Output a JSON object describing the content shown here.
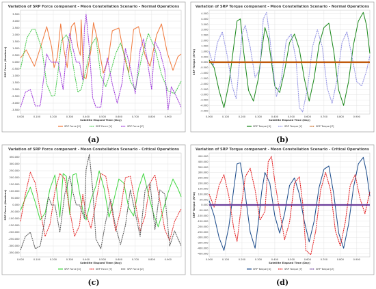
{
  "chart_data": [
    {
      "type": "line",
      "title": "Variation of SRP Force component - Moon Constellation Scenario - Normal Operations",
      "xlabel": "Satellite Elapsed Time (Day)",
      "ylabel": "SRP Force (Newtons)",
      "caption": "(a)",
      "xlim": [
        0,
        0.98
      ],
      "ylim": [
        -3.8,
        3.8
      ],
      "xticks": [
        "0.000",
        "0.100",
        "0.200",
        "0.300",
        "0.400",
        "0.500",
        "0.600",
        "0.700",
        "0.800",
        "0.900"
      ],
      "yticks": [
        "3.500",
        "3.000",
        "2.500",
        "2.000",
        "1.500",
        "1.000",
        "0.500",
        "0.000",
        "-0.500",
        "-1.000",
        "-1.500",
        "-2.000",
        "-2.500",
        "-3.000",
        "-3.500"
      ],
      "yticks_values": [
        3.5,
        3.0,
        2.5,
        2.0,
        1.5,
        1.0,
        0.5,
        0.0,
        -0.5,
        -1.0,
        -1.5,
        -2.0,
        -2.5,
        -3.0,
        -3.5
      ],
      "series": [
        {
          "name": "SRP Force [X]",
          "color": "#f07b3f",
          "x": [
            0.0,
            0.035,
            0.085,
            0.125,
            0.16,
            0.19,
            0.205,
            0.225,
            0.245,
            0.265,
            0.285,
            0.31,
            0.33,
            0.35,
            0.365,
            0.37,
            0.385,
            0.4,
            0.43,
            0.445,
            0.47,
            0.505,
            0.535,
            0.56,
            0.6,
            0.635,
            0.66,
            0.69,
            0.72,
            0.76,
            0.79,
            0.83,
            0.86,
            0.895,
            0.93,
            0.96,
            0.98
          ],
          "y": [
            0.3,
            0.9,
            -0.3,
            1.2,
            2.6,
            1.1,
            -0.4,
            0.4,
            2.8,
            0.9,
            -0.4,
            2.6,
            2.9,
            1.1,
            0.5,
            3.1,
            -1.1,
            -1.2,
            0.9,
            2.9,
            1.6,
            -0.8,
            0.2,
            2.3,
            2.5,
            0.3,
            -0.8,
            2.4,
            2.6,
            0.5,
            -0.3,
            2.0,
            2.8,
            0.7,
            -0.6,
            0.4,
            0.6
          ]
        },
        {
          "name": "SRP Force [Y]",
          "color": "#44c94a",
          "x": [
            0.0,
            0.04,
            0.07,
            0.09,
            0.13,
            0.16,
            0.19,
            0.21,
            0.23,
            0.25,
            0.28,
            0.3,
            0.33,
            0.35,
            0.37,
            0.4,
            0.43,
            0.46,
            0.49,
            0.52,
            0.55,
            0.58,
            0.61,
            0.64,
            0.67,
            0.7,
            0.74,
            0.78,
            0.82,
            0.86,
            0.9,
            0.94,
            0.98
          ],
          "y": [
            -0.5,
            1.8,
            2.4,
            2.4,
            1.0,
            -1.6,
            -2.5,
            -2.4,
            -0.6,
            1.6,
            2.0,
            1.4,
            -0.9,
            -2.2,
            -2.0,
            -0.5,
            1.2,
            1.8,
            -1.0,
            -1.8,
            -0.7,
            0.6,
            1.4,
            0.3,
            -1.4,
            -2.0,
            0.4,
            2.1,
            1.0,
            -0.9,
            -2.1,
            -2.3,
            -1.4
          ]
        },
        {
          "name": "SRP Force [Z]",
          "color": "#9b34d9",
          "x": [
            0.0,
            0.03,
            0.06,
            0.09,
            0.12,
            0.14,
            0.16,
            0.175,
            0.19,
            0.21,
            0.23,
            0.26,
            0.28,
            0.3,
            0.32,
            0.34,
            0.36,
            0.38,
            0.39,
            0.4,
            0.42,
            0.44,
            0.46,
            0.49,
            0.51,
            0.53,
            0.56,
            0.59,
            0.62,
            0.64,
            0.67,
            0.7,
            0.73,
            0.75,
            0.77,
            0.8,
            0.82,
            0.85,
            0.88,
            0.9,
            0.92,
            0.95,
            0.98
          ],
          "y": [
            -3.3,
            -2.2,
            -2.0,
            -3.2,
            -3.2,
            -1.3,
            0.6,
            0.2,
            0.0,
            0.0,
            0.0,
            -2.0,
            0.7,
            2.1,
            1.0,
            0.0,
            0.0,
            -1.3,
            2.5,
            3.5,
            1.0,
            -2.6,
            -3.3,
            -3.3,
            -1.0,
            0.3,
            -1.6,
            -3.0,
            -1.5,
            1.0,
            -0.4,
            -2.3,
            0.9,
            1.7,
            0.4,
            -2.0,
            1.5,
            0.8,
            -0.6,
            -3.5,
            -1.8,
            -2.5,
            -3.3
          ]
        }
      ]
    },
    {
      "type": "line",
      "title": "Variation of SRP Torque component - Moon Constellation Scenario - Normal Operations",
      "xlabel": "Satellite Elapsed Time (Day)",
      "ylabel": "SRP Torque (N*m)",
      "caption": "(b)",
      "xlim": [
        0,
        0.98
      ],
      "ylim": [
        -4.8,
        4.8
      ],
      "xticks": [
        "0.000",
        "0.100",
        "0.200",
        "0.300",
        "0.400",
        "0.500",
        "0.600",
        "0.700",
        "0.800",
        "0.900"
      ],
      "yticks": [
        "4.500",
        "4.000",
        "3.500",
        "3.000",
        "2.500",
        "2.000",
        "1.500",
        "1.000",
        "0.500",
        "0.000",
        "-0.500",
        "-1.000",
        "-1.500",
        "-2.000",
        "-2.500",
        "-3.000",
        "-3.500",
        "-4.000",
        "-4.500"
      ],
      "yticks_values": [
        4.5,
        4.0,
        3.5,
        3.0,
        2.5,
        2.0,
        1.5,
        1.0,
        0.5,
        0.0,
        -0.5,
        -1.0,
        -1.5,
        -2.0,
        -2.5,
        -3.0,
        -3.5,
        -4.0,
        -4.5
      ],
      "series": [
        {
          "name": "SRP Torque [X]",
          "color": "#1e8a1e",
          "x": [
            0.0,
            0.03,
            0.06,
            0.09,
            0.12,
            0.15,
            0.17,
            0.19,
            0.21,
            0.24,
            0.27,
            0.3,
            0.32,
            0.34,
            0.36,
            0.38,
            0.4,
            0.43,
            0.46,
            0.49,
            0.52,
            0.55,
            0.58,
            0.61,
            0.64,
            0.67,
            0.7,
            0.73,
            0.76,
            0.79,
            0.82,
            0.85,
            0.88,
            0.91,
            0.94,
            0.96,
            0.98
          ],
          "y": [
            0.2,
            -0.5,
            -2.6,
            -4.2,
            -2.0,
            1.5,
            3.8,
            4.0,
            1.0,
            -2.6,
            -3.6,
            -1.5,
            1.0,
            3.2,
            2.2,
            0.0,
            -2.2,
            -2.8,
            -0.8,
            1.8,
            2.6,
            1.2,
            -1.5,
            -3.6,
            -1.5,
            1.6,
            3.2,
            3.6,
            1.0,
            -2.6,
            -4.0,
            -1.8,
            1.6,
            3.8,
            4.6,
            3.4,
            0.8
          ]
        },
        {
          "name": "SRP Torque [Y]",
          "color": "#8f8fe3",
          "x": [
            0.0,
            0.025,
            0.05,
            0.08,
            0.11,
            0.14,
            0.165,
            0.18,
            0.2,
            0.22,
            0.25,
            0.28,
            0.31,
            0.33,
            0.35,
            0.37,
            0.39,
            0.41,
            0.44,
            0.47,
            0.5,
            0.53,
            0.55,
            0.57,
            0.6,
            0.63,
            0.66,
            0.69,
            0.72,
            0.75,
            0.78,
            0.81,
            0.84,
            0.87,
            0.9,
            0.93,
            0.96,
            0.98
          ],
          "y": [
            1.0,
            -0.3,
            1.8,
            2.8,
            0.6,
            -2.2,
            -3.4,
            -0.8,
            2.6,
            3.4,
            1.4,
            -1.4,
            -0.6,
            4.0,
            4.6,
            2.2,
            -0.6,
            -3.2,
            -1.6,
            2.0,
            2.6,
            0.2,
            -4.2,
            -4.6,
            -2.4,
            1.4,
            3.0,
            1.4,
            -2.4,
            -3.8,
            -1.6,
            1.8,
            2.8,
            0.6,
            -1.8,
            -2.2,
            -0.8,
            0.6
          ]
        },
        {
          "name": "SRP Torque [Z]",
          "color": "#c05a0c",
          "x": [
            0.0,
            0.98
          ],
          "y": [
            0.0,
            0.0
          ]
        }
      ]
    },
    {
      "type": "line",
      "title": "Variation of SRP Force component - Moon Constellation Scenario - Critical Operations",
      "xlabel": "Satellite Elapsed Time (Day)",
      "ylabel": "SRP Force (Newtons)",
      "caption": "(c)",
      "xlim": [
        0,
        0.98
      ],
      "ylim": [
        -380,
        380
      ],
      "xticks": [
        "0.000",
        "0.100",
        "0.200",
        "0.300",
        "0.400",
        "0.500",
        "0.600",
        "0.700",
        "0.800",
        "0.900"
      ],
      "yticks": [
        "350.000",
        "300.000",
        "250.000",
        "200.000",
        "150.000",
        "100.000",
        "50.000",
        "0.000",
        "-50.000",
        "-100.000",
        "-150.000",
        "-200.000",
        "-250.000",
        "-300.000",
        "-350.000"
      ],
      "yticks_values": [
        350,
        300,
        250,
        200,
        150,
        100,
        50,
        0,
        -50,
        -100,
        -150,
        -200,
        -250,
        -300,
        -350
      ],
      "series": [
        {
          "name": "SRP Force [X]",
          "color": "#46d846",
          "x": [
            0.0,
            0.03,
            0.06,
            0.09,
            0.12,
            0.15,
            0.18,
            0.21,
            0.24,
            0.26,
            0.28,
            0.3,
            0.32,
            0.34,
            0.36,
            0.38,
            0.4,
            0.43,
            0.46,
            0.48,
            0.51,
            0.54,
            0.57,
            0.6,
            0.63,
            0.66,
            0.69,
            0.72,
            0.75,
            0.78,
            0.81,
            0.84,
            0.87,
            0.9,
            0.93,
            0.96,
            0.98
          ],
          "y": [
            -40,
            50,
            130,
            20,
            -110,
            -60,
            120,
            220,
            -90,
            230,
            210,
            -70,
            220,
            230,
            90,
            -40,
            -110,
            40,
            140,
            250,
            120,
            -90,
            40,
            190,
            160,
            -20,
            -80,
            120,
            230,
            80,
            -60,
            -160,
            -40,
            90,
            190,
            120,
            60
          ]
        },
        {
          "name": "SRP Force [Y]",
          "color": "#e52b2b",
          "x": [
            0.0,
            0.03,
            0.06,
            0.09,
            0.12,
            0.15,
            0.18,
            0.21,
            0.24,
            0.27,
            0.3,
            0.33,
            0.36,
            0.38,
            0.4,
            0.43,
            0.46,
            0.49,
            0.52,
            0.55,
            0.58,
            0.61,
            0.64,
            0.67,
            0.7,
            0.73,
            0.76,
            0.79,
            0.82,
            0.85,
            0.88,
            0.91,
            0.94,
            0.97,
            0.98
          ],
          "y": [
            -120,
            80,
            240,
            160,
            -40,
            -230,
            -140,
            100,
            230,
            190,
            -40,
            -230,
            -150,
            80,
            -70,
            -170,
            20,
            230,
            210,
            10,
            -190,
            -40,
            200,
            210,
            20,
            -190,
            -80,
            160,
            220,
            30,
            -180,
            -260,
            -120,
            -50,
            -30
          ]
        },
        {
          "name": "SRP Force [Z]",
          "color": "#555555",
          "x": [
            0.0,
            0.03,
            0.06,
            0.09,
            0.12,
            0.15,
            0.17,
            0.19,
            0.21,
            0.24,
            0.27,
            0.3,
            0.32,
            0.34,
            0.36,
            0.39,
            0.4,
            0.42,
            0.44,
            0.46,
            0.49,
            0.52,
            0.55,
            0.58,
            0.61,
            0.64,
            0.67,
            0.7,
            0.73,
            0.76,
            0.79,
            0.82,
            0.85,
            0.88,
            0.91,
            0.94,
            0.98
          ],
          "y": [
            -330,
            -230,
            -200,
            -320,
            -300,
            -100,
            60,
            0,
            0,
            -200,
            80,
            210,
            90,
            0,
            0,
            -100,
            260,
            370,
            120,
            -250,
            -320,
            -120,
            40,
            -160,
            -290,
            -150,
            110,
            -60,
            -230,
            110,
            160,
            -180,
            110,
            80,
            -300,
            -190,
            -300
          ]
        }
      ]
    },
    {
      "type": "line",
      "title": "Variation of SRP Torque component - Moon Constellation Scenario - Critical Operations",
      "xlabel": "Satellite Elapsed Time (Day)",
      "ylabel": "SRP Torque (N*m)",
      "caption": "(d)",
      "xlim": [
        0,
        0.98
      ],
      "ylim": [
        -480,
        480
      ],
      "xticks": [
        "0.000",
        "0.100",
        "0.200",
        "0.300",
        "0.400",
        "0.500",
        "0.600",
        "0.700",
        "0.800",
        "0.900"
      ],
      "yticks": [
        "450.000",
        "400.000",
        "350.000",
        "300.000",
        "250.000",
        "200.000",
        "150.000",
        "100.000",
        "50.000",
        "0.000",
        "-50.000",
        "-100.000",
        "-150.000",
        "-200.000",
        "-250.000",
        "-300.000",
        "-350.000",
        "-400.000",
        "-450.000"
      ],
      "yticks_values": [
        450,
        400,
        350,
        300,
        250,
        200,
        150,
        100,
        50,
        0,
        -50,
        -100,
        -150,
        -200,
        -250,
        -300,
        -350,
        -400,
        -450
      ],
      "series": [
        {
          "name": "SRP Torque [X]",
          "color": "#1f4e8c",
          "x": [
            0.0,
            0.03,
            0.06,
            0.09,
            0.12,
            0.15,
            0.17,
            0.19,
            0.22,
            0.25,
            0.28,
            0.3,
            0.32,
            0.34,
            0.37,
            0.4,
            0.43,
            0.46,
            0.49,
            0.52,
            0.55,
            0.58,
            0.61,
            0.64,
            0.67,
            0.7,
            0.73,
            0.76,
            0.79,
            0.82,
            0.85,
            0.88,
            0.91,
            0.94,
            0.96,
            0.98
          ],
          "y": [
            40,
            -100,
            -300,
            -420,
            -200,
            150,
            380,
            390,
            100,
            -250,
            -400,
            -160,
            120,
            300,
            200,
            -100,
            -260,
            -80,
            180,
            250,
            100,
            -150,
            -340,
            -150,
            160,
            330,
            360,
            100,
            -260,
            -400,
            -180,
            160,
            380,
            440,
            300,
            80
          ]
        },
        {
          "name": "SRP Torque [Y]",
          "color": "#e31a1c",
          "x": [
            0.0,
            0.03,
            0.06,
            0.09,
            0.12,
            0.15,
            0.17,
            0.19,
            0.22,
            0.25,
            0.28,
            0.31,
            0.34,
            0.36,
            0.38,
            0.4,
            0.43,
            0.46,
            0.49,
            0.52,
            0.55,
            0.57,
            0.59,
            0.62,
            0.65,
            0.68,
            0.71,
            0.74,
            0.77,
            0.8,
            0.83,
            0.86,
            0.89,
            0.92,
            0.95,
            0.98
          ],
          "y": [
            100,
            -20,
            180,
            280,
            80,
            -220,
            -340,
            -80,
            260,
            340,
            140,
            -140,
            -60,
            400,
            450,
            220,
            -60,
            -320,
            -160,
            200,
            260,
            20,
            -420,
            -460,
            -240,
            140,
            300,
            140,
            -240,
            -380,
            -160,
            180,
            280,
            60,
            -80,
            120
          ]
        },
        {
          "name": "SRP Torque [Z]",
          "color": "#6a3d9a",
          "x": [
            0.0,
            0.98
          ],
          "y": [
            0.0,
            0.0
          ]
        }
      ]
    }
  ]
}
